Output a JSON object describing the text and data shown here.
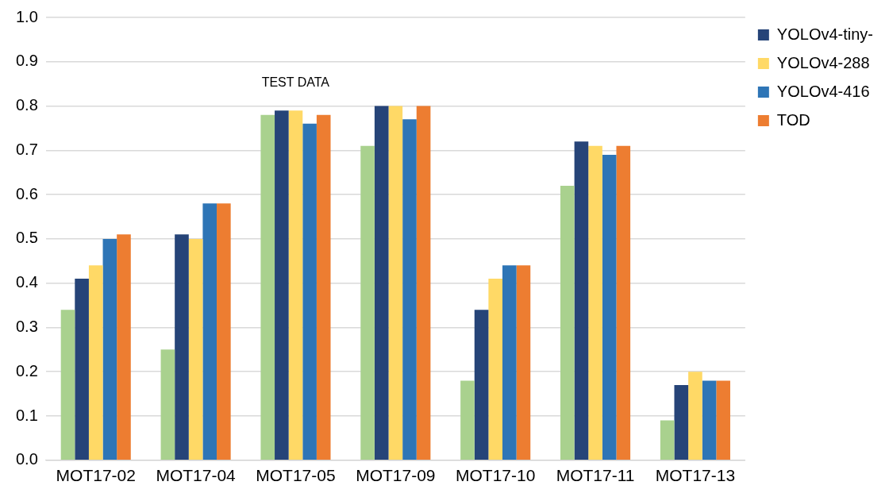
{
  "chart_data": {
    "type": "bar",
    "categories": [
      "MOT17-02",
      "MOT17-04",
      "MOT17-05",
      "MOT17-09",
      "MOT17-10",
      "MOT17-11",
      "MOT17-13"
    ],
    "series": [
      {
        "color": "#a9d18e",
        "values": [
          0.34,
          0.25,
          0.78,
          0.71,
          0.18,
          0.62,
          0.09
        ]
      },
      {
        "name": "YOLOv4-tiny-",
        "color": "#264478",
        "values": [
          0.41,
          0.51,
          0.79,
          0.8,
          0.34,
          0.72,
          0.17
        ]
      },
      {
        "name": "YOLOv4-288",
        "color": "#ffd966",
        "values": [
          0.44,
          0.5,
          0.79,
          0.8,
          0.41,
          0.71,
          0.2
        ]
      },
      {
        "name": "YOLOv4-416",
        "color": "#2e75b6",
        "values": [
          0.5,
          0.58,
          0.76,
          0.77,
          0.44,
          0.69,
          0.18
        ]
      },
      {
        "name": "TOD",
        "color": "#ed7d31",
        "values": [
          0.51,
          0.58,
          0.78,
          0.8,
          0.44,
          0.71,
          0.18
        ]
      }
    ],
    "ylim": [
      0,
      1
    ],
    "yticks": [
      {
        "value": 0,
        "label": "0.0"
      },
      0.1,
      0.2,
      0.3,
      0.4,
      0.5,
      0.6,
      0.7,
      0.8,
      0.9,
      {
        "value": 1,
        "label": "1.0"
      }
    ],
    "grid": "y",
    "legend": "top right",
    "annotations": [
      "TEST DATA"
    ]
  }
}
